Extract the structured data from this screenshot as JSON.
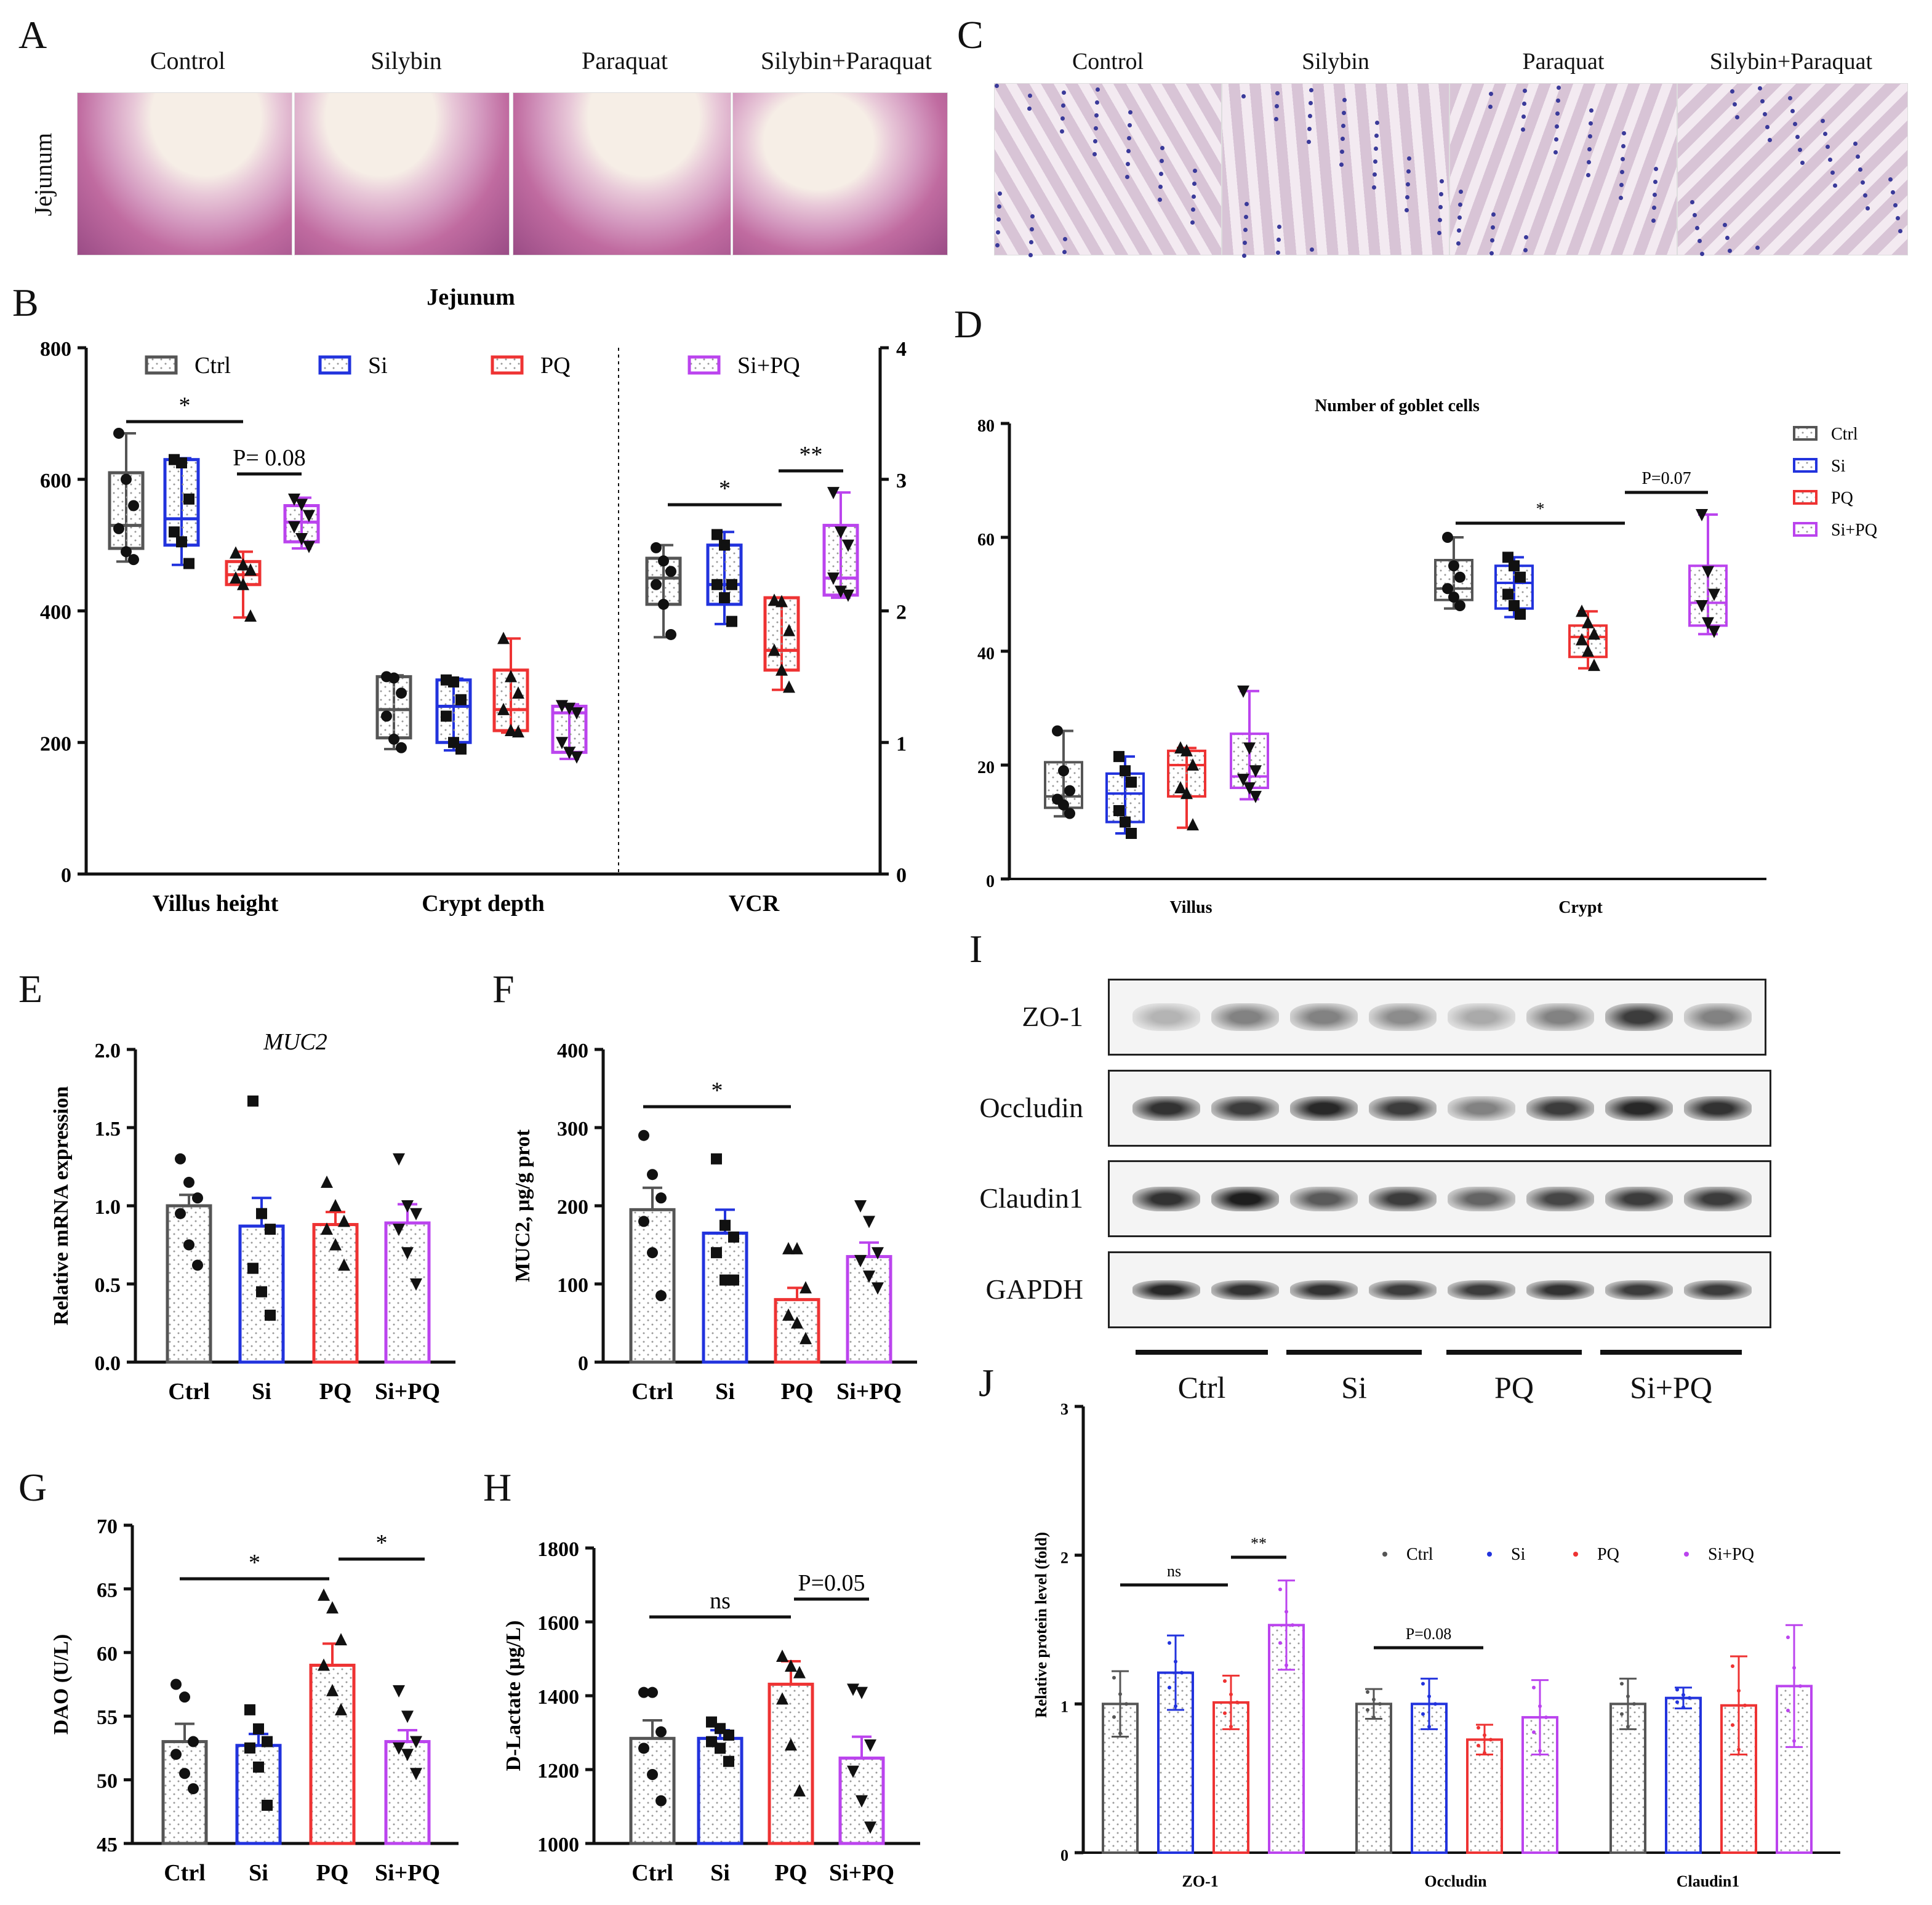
{
  "panels": {
    "A": "A",
    "B": "B",
    "C": "C",
    "D": "D",
    "E": "E",
    "F": "F",
    "G": "G",
    "H": "H",
    "I": "I",
    "J": "J"
  },
  "histology": {
    "conditions": [
      "Control",
      "Silybin",
      "Paraquat",
      "Silybin+Paraquat"
    ],
    "tissue_label": "Jejunum",
    "he_colors": [
      "#c06ba0",
      "#d49ac0",
      "#e8c8d8"
    ],
    "ab_colors": [
      "#d8c4d6",
      "#3a3a9a",
      "#f3eaf1"
    ]
  },
  "groups": [
    "Ctrl",
    "Si",
    "PQ",
    "Si+PQ"
  ],
  "group_colors": {
    "Ctrl": "#555555",
    "Si": "#2233dd",
    "PQ": "#ee3333",
    "Si+PQ": "#bb44ee"
  },
  "chart_data": [
    {
      "panel": "B",
      "type": "box",
      "title": "Jejunum",
      "categories": [
        "Villus height",
        "Crypt depth",
        "VCR"
      ],
      "ylim_left": [
        0,
        800
      ],
      "yticks_left": [
        "0",
        "200",
        "400",
        "600",
        "800"
      ],
      "ylim_right": [
        0,
        4
      ],
      "yticks_right": [
        "0",
        "1",
        "2",
        "3",
        "4"
      ],
      "legend": [
        "Ctrl",
        "Si",
        "PQ",
        "Si+PQ"
      ],
      "boxes": [
        {
          "cat": "Villus height",
          "group": "Ctrl",
          "min": 475,
          "q1": 495,
          "median": 530,
          "q3": 610,
          "max": 670,
          "points": [
            670,
            600,
            560,
            525,
            490,
            478
          ]
        },
        {
          "cat": "Villus height",
          "group": "Si",
          "min": 470,
          "q1": 500,
          "median": 540,
          "q3": 630,
          "max": 632,
          "points": [
            630,
            625,
            570,
            520,
            505,
            472
          ]
        },
        {
          "cat": "Villus height",
          "group": "PQ",
          "min": 390,
          "q1": 440,
          "median": 455,
          "q3": 475,
          "max": 490,
          "points": [
            488,
            470,
            462,
            450,
            440,
            392
          ]
        },
        {
          "cat": "Villus height",
          "group": "Si+PQ",
          "min": 495,
          "q1": 505,
          "median": 535,
          "q3": 560,
          "max": 572,
          "points": [
            570,
            562,
            545,
            528,
            510,
            498
          ]
        },
        {
          "cat": "Crypt depth",
          "group": "Ctrl",
          "min": 190,
          "q1": 207,
          "median": 250,
          "q3": 300,
          "max": 302,
          "points": [
            300,
            298,
            275,
            240,
            205,
            192
          ]
        },
        {
          "cat": "Crypt depth",
          "group": "Si",
          "min": 188,
          "q1": 200,
          "median": 255,
          "q3": 295,
          "max": 297,
          "points": [
            295,
            292,
            265,
            240,
            200,
            190
          ]
        },
        {
          "cat": "Crypt depth",
          "group": "PQ",
          "min": 215,
          "q1": 218,
          "median": 250,
          "q3": 310,
          "max": 358,
          "points": [
            358,
            300,
            275,
            250,
            218,
            216
          ]
        },
        {
          "cat": "Crypt depth",
          "group": "Si+PQ",
          "min": 175,
          "q1": 185,
          "median": 245,
          "q3": 255,
          "max": 258,
          "points": [
            256,
            252,
            245,
            200,
            185,
            178
          ]
        },
        {
          "cat": "VCR",
          "group": "Ctrl",
          "min": 1.8,
          "q1": 2.05,
          "median": 2.25,
          "q3": 2.4,
          "max": 2.5,
          "points": [
            2.48,
            2.38,
            2.3,
            2.2,
            2.05,
            1.82
          ]
        },
        {
          "cat": "VCR",
          "group": "Si",
          "min": 1.9,
          "q1": 2.05,
          "median": 2.2,
          "q3": 2.5,
          "max": 2.6,
          "points": [
            2.58,
            2.5,
            2.2,
            2.2,
            2.1,
            1.92
          ]
        },
        {
          "cat": "VCR",
          "group": "PQ",
          "min": 1.4,
          "q1": 1.55,
          "median": 1.7,
          "q3": 2.1,
          "max": 2.1,
          "points": [
            2.08,
            2.07,
            1.85,
            1.7,
            1.55,
            1.42
          ]
        },
        {
          "cat": "VCR",
          "group": "Si+PQ",
          "min": 2.1,
          "q1": 2.12,
          "median": 2.25,
          "q3": 2.65,
          "max": 2.9,
          "points": [
            2.9,
            2.6,
            2.5,
            2.25,
            2.15,
            2.12
          ]
        }
      ],
      "annotations": [
        "*",
        "P= 0.08",
        "*",
        "**"
      ]
    },
    {
      "panel": "D",
      "type": "box",
      "title": "Number of goblet cells",
      "categories": [
        "Villus",
        "Crypt"
      ],
      "ylim": [
        0,
        80
      ],
      "yticks": [
        "0",
        "20",
        "40",
        "60",
        "80"
      ],
      "legend": [
        "Ctrl",
        "Si",
        "PQ",
        "Si+PQ"
      ],
      "boxes": [
        {
          "cat": "Villus",
          "group": "Ctrl",
          "min": 11,
          "q1": 12.5,
          "median": 14.5,
          "q3": 20.5,
          "max": 26,
          "points": [
            26,
            19,
            15.5,
            14,
            13,
            11.5
          ]
        },
        {
          "cat": "Villus",
          "group": "Si",
          "min": 8,
          "q1": 10,
          "median": 15,
          "q3": 18.5,
          "max": 21.5,
          "points": [
            21.5,
            19,
            17,
            12,
            10,
            8
          ]
        },
        {
          "cat": "Villus",
          "group": "PQ",
          "min": 9,
          "q1": 14.5,
          "median": 20,
          "q3": 22.5,
          "max": 23,
          "points": [
            23,
            22.5,
            20,
            16,
            15,
            9.5
          ]
        },
        {
          "cat": "Villus",
          "group": "Si+PQ",
          "min": 14,
          "q1": 16,
          "median": 18,
          "q3": 25.5,
          "max": 33,
          "points": [
            33,
            23,
            19,
            17.5,
            16,
            14.5
          ]
        },
        {
          "cat": "Crypt",
          "group": "Ctrl",
          "min": 47.5,
          "q1": 49,
          "median": 51,
          "q3": 56,
          "max": 60,
          "points": [
            60,
            55,
            53,
            51,
            49.5,
            48
          ]
        },
        {
          "cat": "Crypt",
          "group": "Si",
          "min": 46,
          "q1": 47.5,
          "median": 52,
          "q3": 55,
          "max": 56.5,
          "points": [
            56.5,
            55,
            53,
            50,
            48,
            46.5
          ]
        },
        {
          "cat": "Crypt",
          "group": "PQ",
          "min": 37,
          "q1": 39,
          "median": 42.5,
          "q3": 44.5,
          "max": 47,
          "points": [
            47,
            45,
            43,
            42,
            40,
            37.5
          ]
        },
        {
          "cat": "Crypt",
          "group": "Si+PQ",
          "min": 43,
          "q1": 44.5,
          "median": 48.5,
          "q3": 55,
          "max": 64,
          "points": [
            64,
            54,
            50,
            48,
            45,
            43.5
          ]
        }
      ],
      "annotations": [
        "*",
        "P=0.07"
      ]
    },
    {
      "panel": "E",
      "type": "bar",
      "title": "MUC2",
      "ylabel": "Relative mRNA expression",
      "categories": [
        "Ctrl",
        "Si",
        "PQ",
        "Si+PQ"
      ],
      "values": [
        1.0,
        0.87,
        0.88,
        0.89
      ],
      "errors": [
        0.07,
        0.18,
        0.08,
        0.12
      ],
      "ylim": [
        0,
        2
      ],
      "yticks": [
        "0.0",
        "0.5",
        "1.0",
        "1.5",
        "2.0"
      ],
      "points": [
        [
          1.3,
          1.15,
          1.05,
          0.95,
          0.75,
          0.62
        ],
        [
          1.67,
          0.95,
          0.85,
          0.6,
          0.45,
          0.3
        ],
        [
          1.15,
          1.0,
          0.9,
          0.85,
          0.75,
          0.62
        ],
        [
          1.3,
          1.0,
          0.95,
          0.85,
          0.7,
          0.5
        ]
      ]
    },
    {
      "panel": "F",
      "type": "bar",
      "ylabel": "MUC2, μg/g prot",
      "categories": [
        "Ctrl",
        "Si",
        "PQ",
        "Si+PQ"
      ],
      "values": [
        195,
        165,
        80,
        135
      ],
      "errors": [
        28,
        30,
        15,
        18
      ],
      "ylim": [
        0,
        400
      ],
      "yticks": [
        "0",
        "100",
        "200",
        "300",
        "400"
      ],
      "points": [
        [
          290,
          240,
          210,
          180,
          140,
          85
        ],
        [
          260,
          175,
          160,
          140,
          105,
          105
        ],
        [
          145,
          145,
          95,
          60,
          50,
          30
        ],
        [
          200,
          180,
          140,
          130,
          110,
          95
        ]
      ],
      "annotations": [
        "*"
      ]
    },
    {
      "panel": "G",
      "type": "bar",
      "ylabel": "DAO (U/L)",
      "categories": [
        "Ctrl",
        "Si",
        "PQ",
        "Si+PQ"
      ],
      "values": [
        53,
        52.7,
        59,
        53
      ],
      "errors": [
        1.4,
        0.9,
        1.7,
        0.9
      ],
      "ylim": [
        45,
        70
      ],
      "yticks": [
        "45",
        "50",
        "55",
        "60",
        "65",
        "70"
      ],
      "points": [
        [
          57.5,
          56.5,
          53,
          52,
          50.5,
          49.3
        ],
        [
          55.5,
          54,
          53,
          52.5,
          51,
          48
        ],
        [
          64.5,
          63.5,
          61,
          59,
          57,
          55.5
        ],
        [
          57,
          55,
          53,
          52.5,
          52,
          50.5
        ]
      ],
      "annotations": [
        "*",
        "*"
      ]
    },
    {
      "panel": "H",
      "type": "bar",
      "ylabel": "D-Lactate (μg/L)",
      "categories": [
        "Ctrl",
        "Si",
        "PQ",
        "Si+PQ"
      ],
      "values": [
        1220,
        1220,
        1385,
        1160
      ],
      "errors": [
        55,
        25,
        70,
        65
      ],
      "ylim": [
        900,
        1800
      ],
      "yticks": [
        "1000",
        "1200",
        "1400",
        "1600",
        "1800"
      ],
      "points": [
        [
          1360,
          1360,
          1240,
          1190,
          1110,
          1030
        ],
        [
          1270,
          1250,
          1230,
          1210,
          1190,
          1150
        ],
        [
          1470,
          1440,
          1420,
          1340,
          1200,
          1060
        ],
        [
          1370,
          1360,
          1200,
          1120,
          1030,
          950
        ]
      ],
      "annotations": [
        "ns",
        "P=0.05"
      ]
    },
    {
      "panel": "J",
      "type": "bar",
      "ylabel": "Relative protein level (fold)",
      "categories": [
        "ZO-1",
        "Occludin",
        "Claudin1"
      ],
      "series": [
        {
          "name": "Ctrl",
          "values": [
            1.0,
            1.0,
            1.0
          ],
          "errors": [
            0.22,
            0.1,
            0.17
          ]
        },
        {
          "name": "Si",
          "values": [
            1.21,
            1.0,
            1.04
          ],
          "errors": [
            0.25,
            0.17,
            0.07
          ]
        },
        {
          "name": "PQ",
          "values": [
            1.01,
            0.76,
            0.99
          ],
          "errors": [
            0.18,
            0.1,
            0.33
          ]
        },
        {
          "name": "Si+PQ",
          "values": [
            1.53,
            0.91,
            1.12
          ],
          "errors": [
            0.3,
            0.25,
            0.41
          ]
        }
      ],
      "ylim": [
        0,
        3
      ],
      "yticks": [
        "0",
        "1",
        "2",
        "3"
      ],
      "legend": [
        "Ctrl",
        "Si",
        "PQ",
        "Si+PQ"
      ],
      "annotations": [
        "ns",
        "**",
        "P=0.08"
      ]
    }
  ],
  "western": {
    "rows": [
      "ZO-1",
      "Occludin",
      "Claudin1",
      "GAPDH"
    ],
    "groups": [
      "Ctrl",
      "Si",
      "PQ",
      "Si+PQ"
    ],
    "intensities": [
      [
        0.25,
        0.5,
        0.5,
        0.45,
        0.3,
        0.5,
        0.85,
        0.5
      ],
      [
        0.9,
        0.85,
        0.95,
        0.85,
        0.5,
        0.85,
        0.95,
        0.9
      ],
      [
        0.9,
        1.0,
        0.7,
        0.85,
        0.65,
        0.8,
        0.85,
        0.85
      ],
      [
        0.95,
        0.9,
        0.9,
        0.85,
        0.85,
        0.9,
        0.85,
        0.85
      ]
    ]
  }
}
